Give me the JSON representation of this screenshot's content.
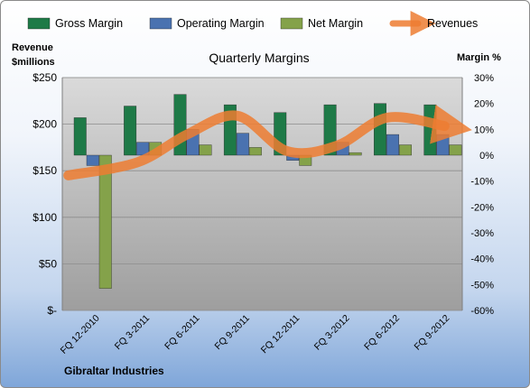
{
  "chart_data": {
    "type": "bar",
    "title": "Quarterly Margins",
    "company": "Gibraltar Industries",
    "ylabel_left": [
      "Revenue",
      "$millions"
    ],
    "ylabel_right": "Margin %",
    "ylim_left": [
      0,
      250
    ],
    "ylim_right": [
      -60,
      30
    ],
    "yticks_left": [
      "$-",
      "$50",
      "$100",
      "$150",
      "$200",
      "$250"
    ],
    "yticks_right": [
      "-60%",
      "-50%",
      "-40%",
      "-30%",
      "-20%",
      "-10%",
      "0%",
      "10%",
      "20%",
      "30%"
    ],
    "categories": [
      "FQ 12-2010",
      "FQ 3-2011",
      "FQ 6-2011",
      "FQ 9-2011",
      "FQ 12-2011",
      "FQ 3-2012",
      "FQ 6-2012",
      "FQ 9-2012"
    ],
    "legend_position": "top",
    "grid": true,
    "series": [
      {
        "name": "Gross Margin",
        "axis": "right",
        "color": "#1e7a47",
        "values": [
          14.5,
          19.0,
          23.5,
          19.5,
          16.5,
          19.5,
          20.0,
          19.5
        ]
      },
      {
        "name": "Operating Margin",
        "axis": "right",
        "color": "#4a72b0",
        "values": [
          -4.0,
          5.0,
          10.0,
          8.5,
          -2.0,
          5.0,
          8.0,
          8.0
        ]
      },
      {
        "name": "Net Margin",
        "axis": "right",
        "color": "#84a24a",
        "values": [
          -51.5,
          5.0,
          4.0,
          3.0,
          -4.0,
          1.0,
          4.0,
          4.0
        ]
      },
      {
        "name": "Revenues",
        "axis": "left",
        "type": "line",
        "color": "#ed7d31",
        "values": [
          145,
          159,
          189,
          209,
          171,
          177,
          207,
          198
        ]
      }
    ]
  }
}
